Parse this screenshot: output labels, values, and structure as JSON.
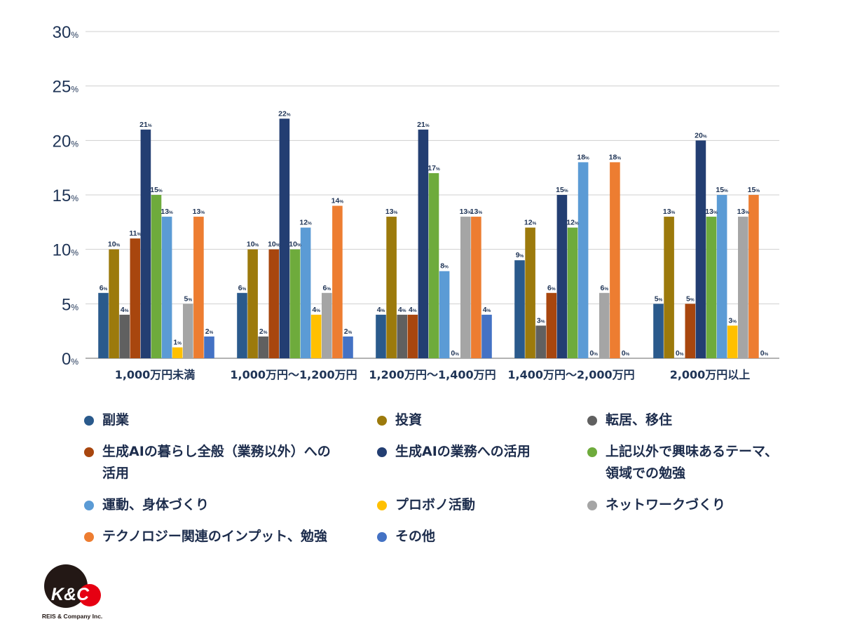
{
  "chart_data": {
    "type": "bar",
    "ylim": [
      0,
      30
    ],
    "y_ticks": [
      0,
      5,
      10,
      15,
      20,
      25,
      30
    ],
    "y_tick_suffix": "%",
    "value_suffix": "%",
    "grid": true,
    "legend_position": "bottom",
    "categories": [
      "1,000万円未満",
      "1,000万円〜1,200万円",
      "1,200万円〜1,400万円",
      "1,400万円〜2,000万円",
      "2,000万円以上"
    ],
    "series": [
      {
        "name": "副業",
        "color": "#2a5a8c",
        "values": [
          6,
          6,
          4,
          9,
          5
        ]
      },
      {
        "name": "投資",
        "color": "#9c7a0c",
        "values": [
          10,
          10,
          13,
          12,
          13
        ]
      },
      {
        "name": "転居、移住",
        "color": "#606060",
        "values": [
          4,
          2,
          4,
          3,
          0
        ]
      },
      {
        "name": "生成AIの暮らし全般（業務以外）への活用",
        "color": "#a8460e",
        "values": [
          11,
          10,
          4,
          6,
          5
        ]
      },
      {
        "name": "生成AIの業務への活用",
        "color": "#233e72",
        "values": [
          21,
          22,
          21,
          15,
          20
        ]
      },
      {
        "name": "上記以外で興味あるテーマ、領域での勉強",
        "color": "#6eab3c",
        "values": [
          15,
          10,
          17,
          12,
          13
        ]
      },
      {
        "name": "運動、身体づくり",
        "color": "#5b9bd5",
        "values": [
          13,
          12,
          8,
          18,
          15
        ]
      },
      {
        "name": "プロボノ活動",
        "color": "#ffc000",
        "values": [
          1,
          4,
          0,
          0,
          3
        ]
      },
      {
        "name": "ネットワークづくり",
        "color": "#a5a5a5",
        "values": [
          5,
          6,
          13,
          6,
          13
        ]
      },
      {
        "name": "テクノロジー関連のインプット、勉強",
        "color": "#ed7d31",
        "values": [
          13,
          14,
          13,
          18,
          15
        ]
      },
      {
        "name": "その他",
        "color": "#4472c4",
        "values": [
          2,
          2,
          4,
          0,
          0
        ]
      }
    ]
  },
  "legend": {
    "rows": [
      [
        0,
        1,
        2
      ],
      [
        3,
        4,
        5
      ],
      [
        6,
        7,
        8
      ],
      [
        9,
        10
      ]
    ],
    "wrapped_labels": {
      "3": [
        "生成AIの暮らし全般（業務以外）への",
        "活用"
      ],
      "5": [
        "上記以外で興味あるテーマ、",
        "領域での勉強"
      ]
    }
  },
  "logo": {
    "text": "K&C",
    "subtext": "KREIS & Company Inc.",
    "dark_color": "#231815",
    "red_color": "#e60012"
  }
}
